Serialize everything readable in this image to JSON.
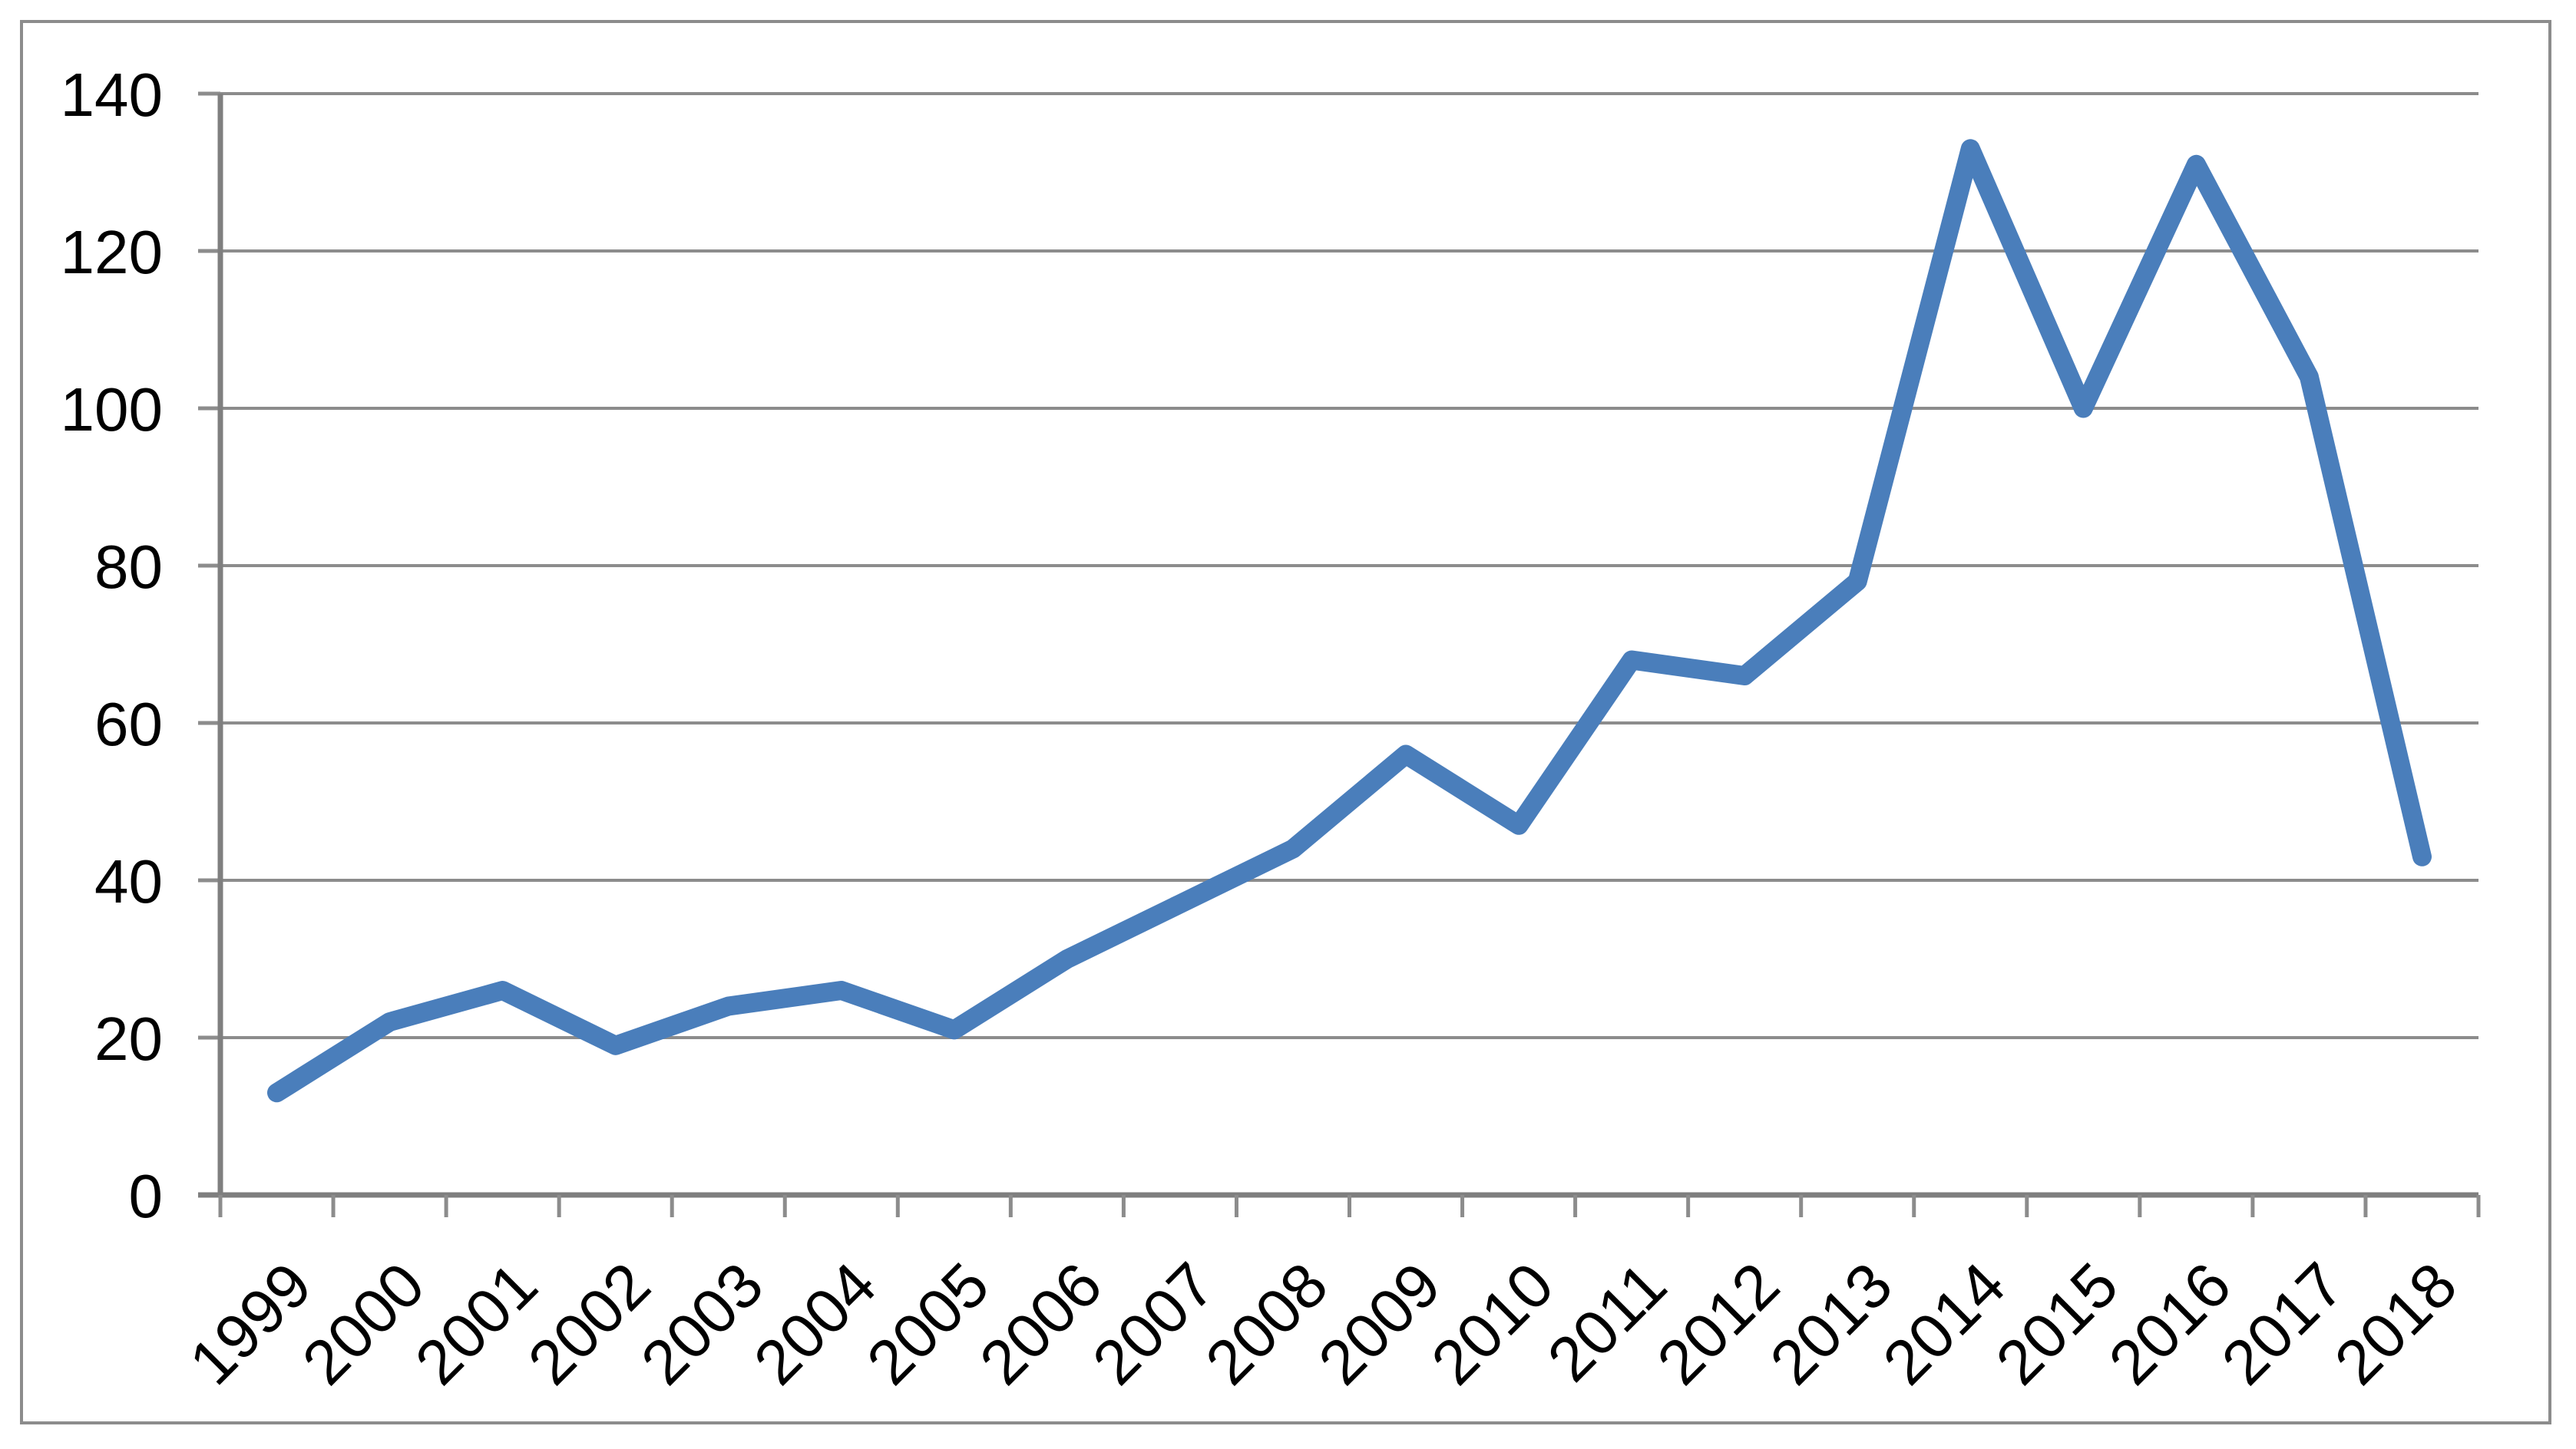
{
  "chart_data": {
    "type": "line",
    "title": "",
    "xlabel": "",
    "ylabel": "",
    "categories": [
      "1999",
      "2000",
      "2001",
      "2002",
      "2003",
      "2004",
      "2005",
      "2006",
      "2007",
      "2008",
      "2009",
      "2010",
      "2011",
      "2012",
      "2013",
      "2014",
      "2015",
      "2016",
      "2017",
      "2018"
    ],
    "values": [
      13,
      22,
      26,
      19,
      24,
      26,
      21,
      30,
      37,
      44,
      56,
      47,
      68,
      66,
      78,
      133,
      100,
      131,
      104,
      43
    ],
    "ylim": [
      0,
      140
    ],
    "ytick_step": 20,
    "ytick_labels": [
      "0",
      "20",
      "40",
      "60",
      "80",
      "100",
      "120",
      "140"
    ],
    "grid": true,
    "legend": false,
    "x_label_rotation_deg": 45,
    "colors": {
      "line": "#4A7EBB",
      "gridline": "#8C8C8C",
      "axis": "#7F7F7F",
      "tick": "#8C8C8C",
      "border": "#8C8C8C",
      "label": "#000000",
      "background": "#FFFFFF"
    }
  }
}
